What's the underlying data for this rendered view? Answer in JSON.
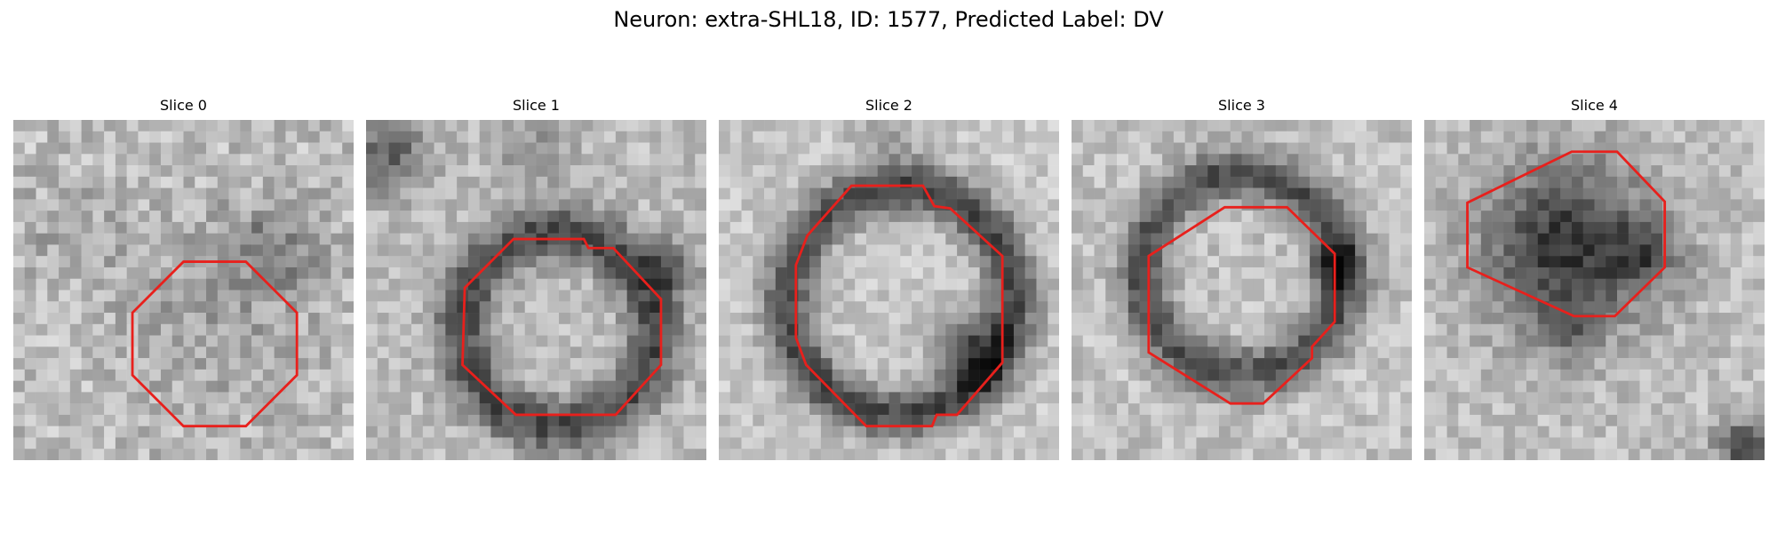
{
  "figure": {
    "title": "Neuron: extra-SHL18, ID: 1577, Predicted Label: DV"
  },
  "colors": {
    "roi_outline": "#e8201c",
    "background": "#ffffff"
  },
  "grid_size": 30,
  "panels": [
    {
      "title": "Slice 0",
      "roi": [
        [
          15,
          12.5
        ],
        [
          20.5,
          12.5
        ],
        [
          25,
          17
        ],
        [
          25,
          22.5
        ],
        [
          20.5,
          27
        ],
        [
          15,
          27
        ],
        [
          10.5,
          22.5
        ],
        [
          10.5,
          17
        ]
      ],
      "blobs": [
        {
          "cx": 17.5,
          "cy": 17,
          "r": 8,
          "a": 0.12
        },
        {
          "cx": 23,
          "cy": 11,
          "r": 4,
          "a": 0.22
        },
        {
          "cx": 5,
          "cy": 10,
          "r": 4,
          "a": 0.1
        }
      ],
      "base": 0.74,
      "noise": 0.28,
      "seed": 11
    },
    {
      "title": "Slice 1",
      "roi": [
        [
          13,
          10.5
        ],
        [
          19.2,
          10.5
        ],
        [
          19.6,
          11.3
        ],
        [
          21.8,
          11.3
        ],
        [
          26,
          15.8
        ],
        [
          26,
          21.6
        ],
        [
          22,
          26
        ],
        [
          13.2,
          26
        ],
        [
          8.5,
          21.6
        ],
        [
          8.7,
          14.8
        ]
      ],
      "blobs": [
        {
          "cx": 17,
          "cy": 18.5,
          "r": 8.5,
          "a": 0.45,
          "ring": true,
          "w": 2.4
        },
        {
          "cx": 2,
          "cy": 3,
          "r": 3.5,
          "a": 0.35
        },
        {
          "cx": 15,
          "cy": 3,
          "r": 3,
          "a": 0.2
        },
        {
          "cx": 27,
          "cy": 13,
          "r": 2.5,
          "a": 0.3
        }
      ],
      "base": 0.74,
      "noise": 0.22,
      "seed": 23
    },
    {
      "title": "Slice 2",
      "roi": [
        [
          11.7,
          5.8
        ],
        [
          18,
          5.8
        ],
        [
          19,
          7.6
        ],
        [
          20.4,
          7.8
        ],
        [
          25,
          12
        ],
        [
          25,
          21.4
        ],
        [
          21,
          26
        ],
        [
          19.2,
          26
        ],
        [
          18.8,
          27
        ],
        [
          13,
          27
        ],
        [
          7.7,
          21.6
        ],
        [
          6.8,
          19.2
        ],
        [
          6.8,
          12.8
        ],
        [
          7.8,
          10.2
        ]
      ],
      "blobs": [
        {
          "cx": 16,
          "cy": 16,
          "r": 10,
          "a": 0.5,
          "ring": true,
          "w": 2.2
        },
        {
          "cx": 22,
          "cy": 20.5,
          "r": 3,
          "a": 0.45
        },
        {
          "cx": 15,
          "cy": 2,
          "r": 3,
          "a": 0.15
        }
      ],
      "base": 0.78,
      "noise": 0.2,
      "seed": 37
    },
    {
      "title": "Slice 3",
      "roi": [
        [
          13.5,
          7.7
        ],
        [
          19,
          7.7
        ],
        [
          23.2,
          11.8
        ],
        [
          23.2,
          17.8
        ],
        [
          21.2,
          20
        ],
        [
          21.2,
          21
        ],
        [
          16.9,
          25
        ],
        [
          14,
          25
        ],
        [
          6.8,
          20.5
        ],
        [
          6.8,
          12
        ]
      ],
      "blobs": [
        {
          "cx": 15,
          "cy": 13.5,
          "r": 8.8,
          "a": 0.45,
          "ring": true,
          "w": 2.2
        },
        {
          "cx": 23.5,
          "cy": 13,
          "r": 2.5,
          "a": 0.35
        }
      ],
      "base": 0.76,
      "noise": 0.22,
      "seed": 49
    },
    {
      "title": "Slice 4",
      "roi": [
        [
          13,
          2.8
        ],
        [
          17,
          2.8
        ],
        [
          21.2,
          7.2
        ],
        [
          21.2,
          13
        ],
        [
          16.8,
          17.3
        ],
        [
          13.2,
          17.3
        ],
        [
          3.8,
          13
        ],
        [
          3.8,
          7.3
        ]
      ],
      "blobs": [
        {
          "cx": 12.5,
          "cy": 11,
          "r": 7.5,
          "a": 0.55
        },
        {
          "cx": 19.5,
          "cy": 12,
          "r": 3,
          "a": 0.3
        },
        {
          "cx": 28.5,
          "cy": 29,
          "r": 2.5,
          "a": 0.55
        },
        {
          "cx": 13,
          "cy": 18.5,
          "r": 2.5,
          "a": 0.2
        }
      ],
      "base": 0.75,
      "noise": 0.22,
      "seed": 61
    }
  ]
}
